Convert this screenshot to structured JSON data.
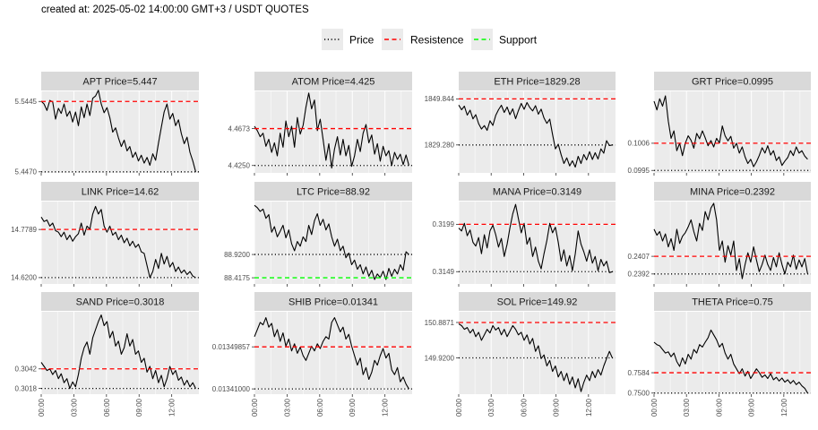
{
  "caption": "created at: 2025-05-02 14:00:00 GMT+3 / USDT QUOTES",
  "colors": {
    "price": "#000000",
    "resistance": "#ff0000",
    "support": "#00ff00",
    "panel_bg": "#ebebeb",
    "strip_bg": "#d9d9d9",
    "grid": "#ffffff"
  },
  "chart_data": {
    "type": "line",
    "x_tick_labels": [
      "00:00",
      "03:00",
      "06:00",
      "09:00",
      "12:00"
    ],
    "x_range_hours": [
      0,
      14.5
    ],
    "legend": [
      {
        "key": "price",
        "label": "Price",
        "style": "dotted"
      },
      {
        "key": "resistance",
        "label": "Resistence",
        "style": "dashed"
      },
      {
        "key": "support",
        "label": "Support",
        "style": "dashed"
      }
    ],
    "panels": [
      {
        "title": "APT Price=5.447",
        "ylim": [
          5.4455,
          5.5585
        ],
        "levels": [
          {
            "type": "resistance",
            "value": 5.5445,
            "label": "5.5445"
          },
          {
            "type": "price",
            "value": 5.447,
            "label": "5.4470"
          }
        ],
        "series": [
          5.545,
          5.541,
          5.532,
          5.546,
          5.544,
          5.52,
          5.535,
          5.528,
          5.541,
          5.524,
          5.531,
          5.516,
          5.53,
          5.511,
          5.537,
          5.522,
          5.541,
          5.525,
          5.549,
          5.552,
          5.56,
          5.541,
          5.529,
          5.536,
          5.522,
          5.502,
          5.508,
          5.494,
          5.482,
          5.491,
          5.476,
          5.482,
          5.467,
          5.474,
          5.462,
          5.47,
          5.459,
          5.467,
          5.456,
          5.472,
          5.463,
          5.487,
          5.509,
          5.53,
          5.541,
          5.52,
          5.528,
          5.511,
          5.519,
          5.5,
          5.486,
          5.495,
          5.474,
          5.462,
          5.447
        ]
      },
      {
        "title": "ATOM Price=4.425",
        "ylim": [
          4.4165,
          4.51
        ],
        "levels": [
          {
            "type": "resistance",
            "value": 4.4673,
            "label": "4.4673"
          },
          {
            "type": "price",
            "value": 4.425,
            "label": "4.4250"
          }
        ],
        "series": [
          4.47,
          4.465,
          4.458,
          4.462,
          4.447,
          4.455,
          4.44,
          4.451,
          4.436,
          4.462,
          4.446,
          4.476,
          4.458,
          4.47,
          4.446,
          4.48,
          4.461,
          4.471,
          4.492,
          4.508,
          4.49,
          4.5,
          4.465,
          4.478,
          4.455,
          4.431,
          4.45,
          4.422,
          4.444,
          4.458,
          4.437,
          4.455,
          4.436,
          4.448,
          4.424,
          4.436,
          4.455,
          4.441,
          4.462,
          4.472,
          4.451,
          4.46,
          4.438,
          4.45,
          4.43,
          4.447,
          4.436,
          4.442,
          4.425,
          4.44,
          4.432,
          4.438,
          4.426,
          4.437,
          4.425
        ]
      },
      {
        "title": "ETH Price=1829.28",
        "ylim": [
          1816.8,
          1853.2
        ],
        "levels": [
          {
            "type": "resistance",
            "value": 1849.844,
            "label": "1849.844"
          },
          {
            "type": "price",
            "value": 1829.28,
            "label": "1829.280"
          }
        ],
        "series": [
          1847.1,
          1845.0,
          1846.6,
          1842.6,
          1844.8,
          1840.9,
          1842.8,
          1838.8,
          1836.4,
          1837.9,
          1835.8,
          1840.1,
          1838.0,
          1842.5,
          1845.0,
          1847.0,
          1843.8,
          1846.2,
          1842.8,
          1845.4,
          1841.0,
          1844.6,
          1847.8,
          1845.2,
          1848.2,
          1846.0,
          1844.5,
          1846.8,
          1843.0,
          1845.3,
          1841.3,
          1838.9,
          1840.8,
          1834.0,
          1827.5,
          1829.6,
          1824.9,
          1821.0,
          1823.5,
          1819.9,
          1822.2,
          1819.4,
          1824.2,
          1821.0,
          1825.0,
          1822.6,
          1826.3,
          1822.8,
          1825.8,
          1823.0,
          1827.5,
          1825.6,
          1831.2,
          1829.0,
          1829.3
        ]
      },
      {
        "title": "GRT Price=0.0995",
        "ylim": [
          0.0994,
          0.1027
        ],
        "levels": [
          {
            "type": "resistance",
            "value": 0.1006,
            "label": "0.1006"
          },
          {
            "type": "price",
            "value": 0.0995,
            "label": "0.0995"
          }
        ],
        "series": [
          0.1023,
          0.10195,
          0.1024,
          0.1021,
          0.10252,
          0.1015,
          0.1008,
          0.1011,
          0.1003,
          0.1006,
          0.1001,
          0.1006,
          0.1009,
          0.10072,
          0.1004,
          0.101,
          0.10078,
          0.1011,
          0.10082,
          0.1005,
          0.10071,
          0.10045,
          0.1008,
          0.10061,
          0.1013,
          0.1009,
          0.1007,
          0.10088,
          0.1004,
          0.1006,
          0.1002,
          0.10045,
          0.10005,
          0.09978,
          0.09995,
          0.09965,
          0.09985,
          0.1001,
          0.10042,
          0.1002,
          0.1005,
          0.10012,
          0.1003,
          0.0999,
          0.10005,
          0.0997,
          0.09988,
          0.10002,
          0.1003,
          0.1001,
          0.10045,
          0.1002,
          0.1003,
          0.10008,
          0.09995
        ]
      },
      {
        "title": "LINK Price=14.62",
        "ylim": [
          14.599,
          14.871
        ],
        "levels": [
          {
            "type": "resistance",
            "value": 14.7789,
            "label": "14.7789"
          },
          {
            "type": "price",
            "value": 14.62,
            "label": "14.6200"
          }
        ],
        "series": [
          14.82,
          14.805,
          14.81,
          14.79,
          14.8,
          14.775,
          14.77,
          14.755,
          14.77,
          14.745,
          14.76,
          14.74,
          14.755,
          14.765,
          14.8,
          14.76,
          14.79,
          14.78,
          14.83,
          14.855,
          14.83,
          14.845,
          14.79,
          14.77,
          14.79,
          14.76,
          14.77,
          14.745,
          14.76,
          14.735,
          14.75,
          14.725,
          14.74,
          14.72,
          14.73,
          14.705,
          14.7,
          14.66,
          14.62,
          14.64,
          14.68,
          14.65,
          14.7,
          14.665,
          14.69,
          14.655,
          14.67,
          14.64,
          14.655,
          14.635,
          14.645,
          14.63,
          14.64,
          14.625,
          14.62
        ]
      },
      {
        "title": "LTC Price=88.92",
        "ylim": [
          88.2835,
          90.062
        ],
        "levels": [
          {
            "type": "price",
            "value": 88.92,
            "label": "88.9200"
          },
          {
            "type": "support",
            "value": 88.4175,
            "label": "88.4175"
          }
        ],
        "series": [
          89.98,
          89.93,
          89.85,
          89.9,
          89.7,
          89.78,
          89.4,
          89.52,
          89.3,
          89.42,
          89.55,
          89.28,
          89.45,
          89.15,
          89.0,
          89.2,
          89.1,
          89.3,
          89.2,
          89.55,
          89.35,
          89.65,
          89.8,
          89.55,
          89.68,
          89.45,
          89.58,
          89.3,
          89.1,
          89.25,
          89.0,
          89.1,
          88.85,
          88.95,
          88.7,
          88.8,
          88.6,
          88.7,
          88.5,
          88.65,
          88.45,
          88.58,
          88.38,
          88.5,
          88.42,
          88.56,
          88.38,
          88.62,
          88.45,
          88.6,
          88.5,
          88.7,
          88.58,
          88.98,
          88.92
        ]
      },
      {
        "title": "MANA Price=0.3149",
        "ylim": [
          0.3136,
          0.3223
        ],
        "levels": [
          {
            "type": "resistance",
            "value": 0.3199,
            "label": "0.3199"
          },
          {
            "type": "price",
            "value": 0.3149,
            "label": "0.3149"
          }
        ],
        "series": [
          0.3195,
          0.3192,
          0.32,
          0.3187,
          0.3193,
          0.318,
          0.3176,
          0.3185,
          0.3168,
          0.3188,
          0.3174,
          0.3192,
          0.3198,
          0.3188,
          0.3175,
          0.3184,
          0.3165,
          0.3178,
          0.3195,
          0.321,
          0.322,
          0.3205,
          0.319,
          0.32,
          0.3178,
          0.3185,
          0.3165,
          0.3175,
          0.316,
          0.3152,
          0.3168,
          0.3182,
          0.32,
          0.319,
          0.3196,
          0.318,
          0.316,
          0.3172,
          0.3155,
          0.3166,
          0.315,
          0.3168,
          0.3192,
          0.3178,
          0.317,
          0.316,
          0.3172,
          0.3158,
          0.3165,
          0.315,
          0.3162,
          0.3155,
          0.316,
          0.3148,
          0.3149
        ]
      },
      {
        "title": "MINA Price=0.2392",
        "ylim": [
          0.23835,
          0.24535
        ],
        "levels": [
          {
            "type": "resistance",
            "value": 0.2407,
            "label": "0.2407"
          },
          {
            "type": "price",
            "value": 0.2392,
            "label": "0.2392"
          }
        ],
        "series": [
          0.243,
          0.2425,
          0.2428,
          0.242,
          0.2426,
          0.2415,
          0.2422,
          0.2412,
          0.243,
          0.2418,
          0.2424,
          0.2427,
          0.2432,
          0.2438,
          0.2428,
          0.242,
          0.2435,
          0.2429,
          0.2445,
          0.2438,
          0.2448,
          0.2452,
          0.2438,
          0.2412,
          0.242,
          0.2402,
          0.2416,
          0.2408,
          0.242,
          0.2395,
          0.2405,
          0.2388,
          0.24,
          0.241,
          0.2402,
          0.2415,
          0.2404,
          0.2394,
          0.24,
          0.2408,
          0.24,
          0.2395,
          0.2406,
          0.2398,
          0.241,
          0.24,
          0.2392,
          0.2402,
          0.2398,
          0.2408,
          0.2396,
          0.2404,
          0.2398,
          0.2405,
          0.2392
        ]
      },
      {
        "title": "SAND Price=0.3018",
        "ylim": [
          0.3011,
          0.3112
        ],
        "levels": [
          {
            "type": "resistance",
            "value": 0.3042,
            "label": "0.3042"
          },
          {
            "type": "price",
            "value": 0.3018,
            "label": "0.3018"
          }
        ],
        "series": [
          0.305,
          0.3045,
          0.304,
          0.3042,
          0.3035,
          0.304,
          0.303,
          0.3036,
          0.3025,
          0.303,
          0.3018,
          0.3026,
          0.302,
          0.3035,
          0.3055,
          0.3068,
          0.3075,
          0.306,
          0.308,
          0.309,
          0.31,
          0.3108,
          0.3095,
          0.31,
          0.308,
          0.3088,
          0.307,
          0.3076,
          0.306,
          0.3068,
          0.3085,
          0.307,
          0.3078,
          0.306,
          0.3064,
          0.305,
          0.3055,
          0.3038,
          0.3045,
          0.303,
          0.304,
          0.3025,
          0.3034,
          0.302,
          0.303,
          0.3045,
          0.3035,
          0.304,
          0.3028,
          0.3032,
          0.3022,
          0.3028,
          0.302,
          0.3025,
          0.3018
        ]
      },
      {
        "title": "SHIB Price=0.01341",
        "ylim": [
          0.0133989,
          0.0135725
        ],
        "levels": [
          {
            "type": "resistance",
            "value": 0.01349857,
            "label": "0.01349857"
          },
          {
            "type": "price",
            "value": 0.01341,
            "label": "0.01341000"
          }
        ],
        "series": [
          0.01352,
          0.013535,
          0.01355,
          0.013545,
          0.01356,
          0.01354,
          0.013548,
          0.01352,
          0.013535,
          0.01351,
          0.013528,
          0.0135,
          0.013515,
          0.01349,
          0.013505,
          0.013485,
          0.013498,
          0.01348,
          0.01347,
          0.013485,
          0.0135,
          0.01349,
          0.013505,
          0.013495,
          0.01351,
          0.01352,
          0.013515,
          0.01355,
          0.01356,
          0.013545,
          0.01353,
          0.01354,
          0.013515,
          0.013525,
          0.0135,
          0.01348,
          0.01346,
          0.013475,
          0.01344,
          0.013455,
          0.01343,
          0.013445,
          0.01347,
          0.01346,
          0.01348,
          0.013495,
          0.013475,
          0.013485,
          0.01345,
          0.01344,
          0.013455,
          0.013425,
          0.013435,
          0.01342,
          0.01341
        ]
      },
      {
        "title": "SOL Price=149.92",
        "ylim": [
          148.93,
          151.18
        ],
        "levels": [
          {
            "type": "resistance",
            "value": 150.8871,
            "label": "150.8871"
          },
          {
            "type": "price",
            "value": 149.92,
            "label": "149.9200"
          }
        ],
        "series": [
          150.85,
          150.8,
          150.7,
          150.75,
          150.6,
          150.7,
          150.5,
          150.62,
          150.4,
          150.55,
          150.7,
          150.6,
          150.8,
          150.68,
          150.75,
          150.55,
          150.7,
          150.5,
          150.65,
          150.8,
          150.7,
          150.55,
          150.62,
          150.4,
          150.55,
          150.3,
          150.45,
          150.1,
          150.25,
          149.9,
          150.0,
          149.7,
          149.85,
          149.55,
          149.7,
          149.4,
          149.55,
          149.3,
          149.5,
          149.2,
          149.4,
          149.1,
          149.35,
          149.0,
          149.25,
          149.45,
          149.3,
          149.55,
          149.38,
          149.6,
          149.45,
          149.7,
          149.9,
          150.1,
          149.92
        ]
      },
      {
        "title": "THETA Price=0.75",
        "ylim": [
          0.74955,
          0.78355
        ],
        "levels": [
          {
            "type": "resistance",
            "value": 0.7584,
            "label": "0.7584"
          },
          {
            "type": "price",
            "value": 0.75,
            "label": "0.7500"
          }
        ],
        "series": [
          0.771,
          0.77,
          0.7695,
          0.768,
          0.7665,
          0.767,
          0.765,
          0.7665,
          0.763,
          0.761,
          0.7645,
          0.762,
          0.766,
          0.764,
          0.768,
          0.7665,
          0.77,
          0.769,
          0.771,
          0.7728,
          0.776,
          0.774,
          0.772,
          0.769,
          0.7705,
          0.7665,
          0.764,
          0.766,
          0.762,
          0.76,
          0.758,
          0.76,
          0.757,
          0.759,
          0.756,
          0.758,
          0.76,
          0.7585,
          0.7565,
          0.7575,
          0.756,
          0.758,
          0.7555,
          0.7565,
          0.755,
          0.7562,
          0.7545,
          0.7555,
          0.754,
          0.7552,
          0.7535,
          0.7545,
          0.753,
          0.752,
          0.75
        ]
      }
    ]
  }
}
